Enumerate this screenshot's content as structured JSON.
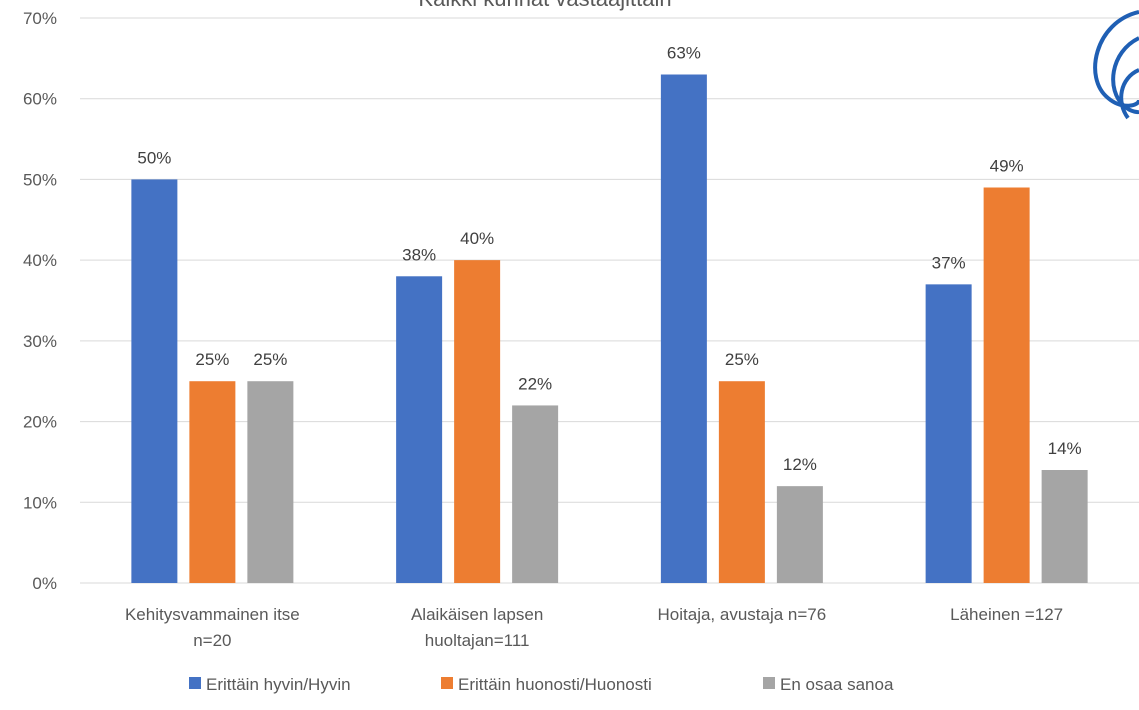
{
  "chart_data": {
    "type": "bar",
    "title": "Kaikki kunnat vastaajittain",
    "categories": [
      [
        "Kehitysvammainen itse",
        "n=20"
      ],
      [
        "Alaikäisen lapsen",
        "huoltajan=111"
      ],
      [
        "Hoitaja, avustaja n=76"
      ],
      [
        "Läheinen =127"
      ]
    ],
    "series": [
      {
        "name": "Erittäin hyvin/Hyvin",
        "color": "#4472c4",
        "values": [
          50,
          38,
          63,
          37
        ],
        "labels": [
          "50%",
          "38%",
          "63%",
          "37%"
        ]
      },
      {
        "name": "Erittäin huonosti/Huonosti",
        "color": "#ed7d31",
        "values": [
          25,
          40,
          25,
          49
        ],
        "labels": [
          "25%",
          "40%",
          "25%",
          "49%"
        ]
      },
      {
        "name": "En osaa sanoa",
        "color": "#a5a5a5",
        "values": [
          25,
          22,
          12,
          14
        ],
        "labels": [
          "25%",
          "22%",
          "12%",
          "14%"
        ]
      }
    ],
    "yticks": [
      "0%",
      "10%",
      "20%",
      "30%",
      "40%",
      "50%",
      "60%",
      "70%"
    ],
    "ylim": [
      0,
      70
    ],
    "grid": true,
    "legend_position": "bottom"
  },
  "logo": {
    "name": "logo-swirl-icon",
    "color": "#1f5fb4"
  }
}
